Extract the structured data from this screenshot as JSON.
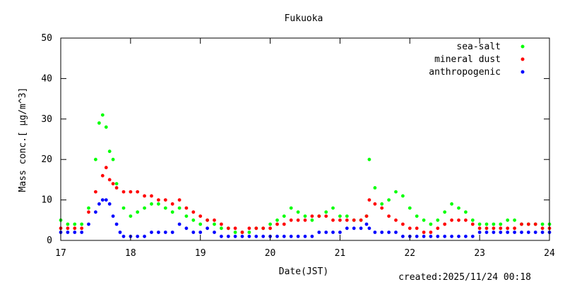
{
  "chart_data": {
    "type": "scatter",
    "title": "Fukuoka",
    "xlabel": "Date(JST)",
    "ylabel": "Mass conc.[ μg/m^3]",
    "footer": "created:2025/11/24 00:18",
    "xlim": [
      17,
      24
    ],
    "ylim": [
      0,
      50
    ],
    "x_ticks": [
      17,
      18,
      19,
      20,
      21,
      22,
      23,
      24
    ],
    "y_ticks": [
      0,
      10,
      20,
      30,
      40,
      50
    ],
    "legend_position": "top-right",
    "series": [
      {
        "name": "sea-salt",
        "color": "#00ff00",
        "x": [
          17.0,
          17.1,
          17.2,
          17.3,
          17.4,
          17.5,
          17.55,
          17.6,
          17.65,
          17.7,
          17.75,
          17.8,
          17.9,
          18.0,
          18.1,
          18.2,
          18.3,
          18.4,
          18.5,
          18.6,
          18.7,
          18.8,
          18.9,
          19.0,
          19.1,
          19.2,
          19.3,
          19.4,
          19.5,
          19.6,
          19.7,
          19.8,
          19.9,
          20.0,
          20.1,
          20.2,
          20.3,
          20.4,
          20.5,
          20.6,
          20.7,
          20.8,
          20.9,
          21.0,
          21.1,
          21.2,
          21.3,
          21.38,
          21.42,
          21.5,
          21.6,
          21.7,
          21.8,
          21.9,
          22.0,
          22.1,
          22.2,
          22.3,
          22.4,
          22.5,
          22.6,
          22.7,
          22.8,
          22.9,
          23.0,
          23.1,
          23.2,
          23.3,
          23.4,
          23.5,
          23.6,
          23.7,
          23.8,
          23.9,
          24.0
        ],
        "values": [
          5,
          4,
          4,
          4,
          8,
          20,
          29,
          31,
          28,
          22,
          20,
          14,
          8,
          6,
          7,
          8,
          9,
          9,
          8,
          7,
          8,
          6,
          5,
          4,
          5,
          4,
          3,
          3,
          2,
          2,
          2,
          3,
          3,
          4,
          5,
          6,
          8,
          7,
          6,
          5,
          6,
          7,
          8,
          6,
          6,
          5,
          5,
          6,
          20,
          13,
          9,
          10,
          12,
          11,
          8,
          6,
          5,
          4,
          5,
          7,
          9,
          8,
          7,
          5,
          4,
          4,
          4,
          4,
          5,
          5,
          4,
          4,
          4,
          4,
          4
        ]
      },
      {
        "name": "mineral dust",
        "color": "#ff0000",
        "x": [
          17.0,
          17.1,
          17.2,
          17.3,
          17.4,
          17.5,
          17.6,
          17.65,
          17.7,
          17.75,
          17.8,
          17.9,
          18.0,
          18.1,
          18.2,
          18.3,
          18.4,
          18.5,
          18.6,
          18.7,
          18.8,
          18.9,
          19.0,
          19.1,
          19.2,
          19.3,
          19.4,
          19.5,
          19.6,
          19.7,
          19.8,
          19.9,
          20.0,
          20.1,
          20.2,
          20.3,
          20.4,
          20.5,
          20.6,
          20.7,
          20.8,
          20.9,
          21.0,
          21.1,
          21.2,
          21.3,
          21.38,
          21.42,
          21.5,
          21.6,
          21.7,
          21.8,
          21.9,
          22.0,
          22.1,
          22.2,
          22.3,
          22.4,
          22.5,
          22.6,
          22.7,
          22.8,
          22.9,
          23.0,
          23.1,
          23.2,
          23.3,
          23.4,
          23.5,
          23.6,
          23.7,
          23.8,
          23.9,
          24.0
        ],
        "values": [
          3,
          3,
          3,
          3,
          7,
          12,
          16,
          18,
          15,
          14,
          13,
          12,
          12,
          12,
          11,
          11,
          10,
          10,
          9,
          10,
          8,
          7,
          6,
          5,
          5,
          4,
          3,
          3,
          2,
          3,
          3,
          3,
          3,
          4,
          4,
          5,
          5,
          5,
          6,
          6,
          6,
          5,
          5,
          5,
          5,
          5,
          6,
          10,
          9,
          8,
          6,
          5,
          4,
          3,
          3,
          2,
          2,
          3,
          4,
          5,
          5,
          5,
          4,
          3,
          3,
          3,
          3,
          3,
          3,
          4,
          4,
          4,
          3,
          3
        ]
      },
      {
        "name": "anthropogenic",
        "color": "#0000ff",
        "x": [
          17.0,
          17.1,
          17.2,
          17.3,
          17.4,
          17.5,
          17.55,
          17.6,
          17.65,
          17.7,
          17.75,
          17.8,
          17.85,
          17.9,
          18.0,
          18.1,
          18.2,
          18.3,
          18.4,
          18.5,
          18.6,
          18.7,
          18.8,
          18.9,
          19.0,
          19.1,
          19.2,
          19.3,
          19.4,
          19.5,
          19.6,
          19.7,
          19.8,
          19.9,
          20.0,
          20.1,
          20.2,
          20.3,
          20.4,
          20.5,
          20.6,
          20.7,
          20.8,
          20.9,
          21.0,
          21.1,
          21.2,
          21.3,
          21.38,
          21.42,
          21.5,
          21.6,
          21.7,
          21.8,
          21.9,
          22.0,
          22.1,
          22.2,
          22.3,
          22.4,
          22.5,
          22.6,
          22.7,
          22.8,
          22.9,
          23.0,
          23.1,
          23.2,
          23.3,
          23.4,
          23.5,
          23.6,
          23.7,
          23.8,
          23.9,
          24.0
        ],
        "values": [
          2,
          2,
          2,
          2,
          4,
          7,
          9,
          10,
          10,
          9,
          6,
          4,
          2,
          1,
          1,
          1,
          1,
          2,
          2,
          2,
          2,
          4,
          3,
          2,
          2,
          3,
          2,
          1,
          1,
          1,
          1,
          1,
          1,
          1,
          1,
          1,
          1,
          1,
          1,
          1,
          1,
          2,
          2,
          2,
          2,
          3,
          3,
          3,
          4,
          3,
          2,
          2,
          2,
          2,
          1,
          1,
          1,
          1,
          1,
          1,
          1,
          1,
          1,
          1,
          1,
          2,
          2,
          2,
          2,
          2,
          2,
          2,
          2,
          2,
          2,
          2
        ]
      }
    ]
  }
}
